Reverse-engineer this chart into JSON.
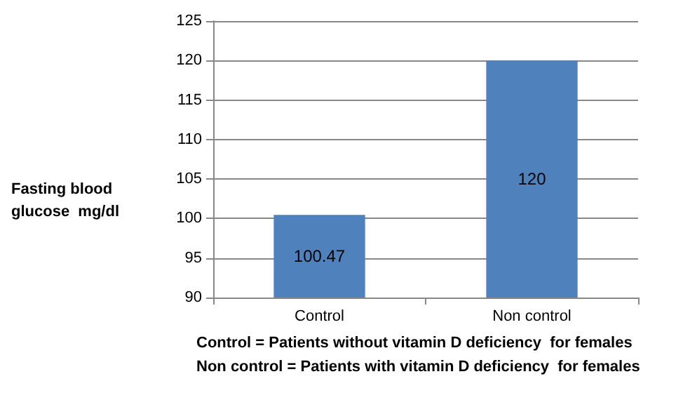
{
  "chart_data": {
    "type": "bar",
    "ylabel": "Fasting blood glucose  mg/dl",
    "categories": [
      "Control",
      "Non control"
    ],
    "values": [
      100.47,
      120
    ],
    "color": "#4f81bd",
    "ylim": [
      90,
      125
    ],
    "yticks": [
      90,
      95,
      100,
      105,
      110,
      115,
      120,
      125
    ],
    "grid": "y",
    "data_labels": true,
    "annotations": [
      "Control = Patients without vitamin D deficiency  for females",
      "Non control = Patients with vitamin D deficiency  for females"
    ]
  }
}
